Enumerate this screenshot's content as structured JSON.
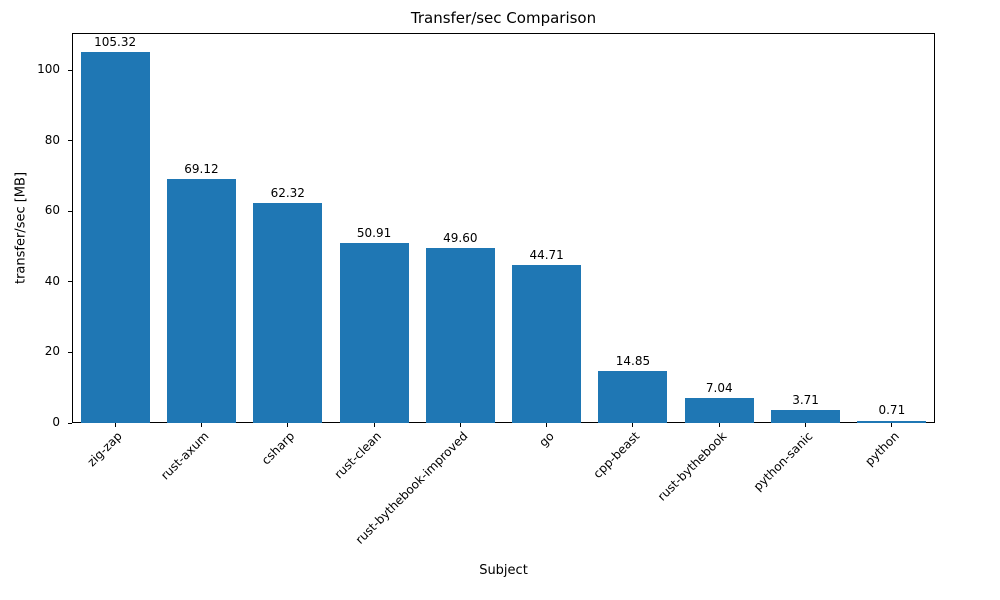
{
  "chart_data": {
    "type": "bar",
    "title": "Transfer/sec Comparison",
    "xlabel": "Subject",
    "ylabel": "transfer/sec [MB]",
    "categories": [
      "zig-zap",
      "rust-axum",
      "csharp",
      "rust-clean",
      "rust-bythebook-improved",
      "go",
      "cpp-beast",
      "rust-bythebook",
      "python-sanic",
      "python"
    ],
    "values": [
      105.32,
      69.12,
      62.32,
      50.91,
      49.6,
      44.71,
      14.85,
      7.04,
      3.71,
      0.71
    ],
    "value_labels": [
      "105.32",
      "69.12",
      "62.32",
      "50.91",
      "49.60",
      "44.71",
      "14.85",
      "7.04",
      "3.71",
      "0.71"
    ],
    "bar_color": "#1f77b4",
    "ylim": [
      0,
      110.6
    ],
    "yticks": [
      0,
      20,
      40,
      60,
      80,
      100
    ],
    "grid": false,
    "legend": null,
    "x_tick_rotation": 45
  }
}
